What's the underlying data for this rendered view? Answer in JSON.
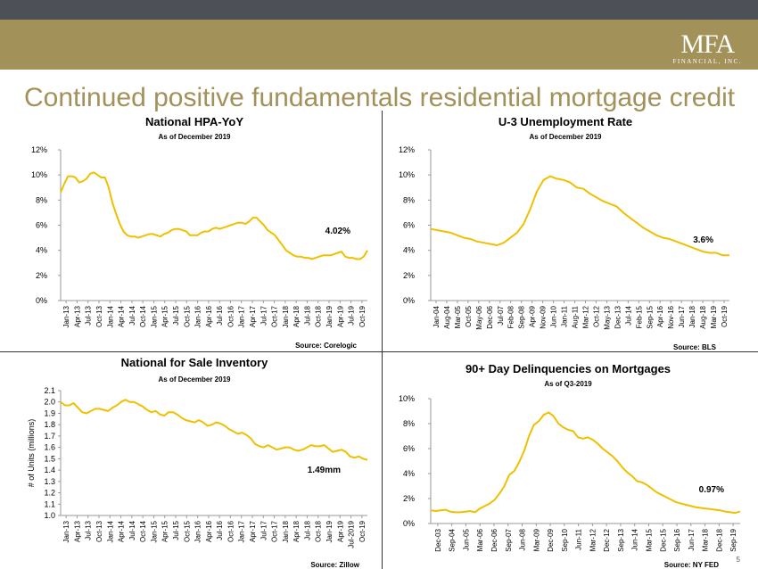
{
  "header": {
    "logo_text": "MFA",
    "logo_subtext": "FINANCIAL, INC.",
    "title": "Continued positive fundamentals residential mortgage credit"
  },
  "colors": {
    "gold": "#a3915a",
    "charcoal": "#4d5157",
    "line": "#f0c000"
  },
  "page_number": "5",
  "chart_data": [
    {
      "type": "line",
      "title": "National HPA-YoY",
      "subtitle": "As of  December 2019",
      "source": "Source: Corelogic",
      "annotation": "4.02%",
      "ylim": [
        0,
        12
      ],
      "yticks": [
        0,
        2,
        4,
        6,
        8,
        10,
        12
      ],
      "ytick_labels": [
        "0%",
        "2%",
        "4%",
        "6%",
        "8%",
        "10%",
        "12%"
      ],
      "xtick_labels": [
        "Jan-13",
        "Apr-13",
        "Jul-13",
        "Oct-13",
        "Jan-14",
        "Apr-14",
        "Jul-14",
        "Oct-14",
        "Jan-15",
        "Apr-15",
        "Jul-15",
        "Oct-15",
        "Jan-16",
        "Apr-16",
        "Jul-16",
        "Oct-16",
        "Jan-17",
        "Apr-17",
        "Jul-17",
        "Oct-17",
        "Jan-18",
        "Apr-18",
        "Jul-18",
        "Oct-18",
        "Jan-19",
        "Apr-19",
        "Jul-19",
        "Oct-19"
      ],
      "series": [
        {
          "values": [
            8.6,
            9.3,
            9.9,
            9.9,
            9.8,
            9.4,
            9.5,
            9.7,
            10.1,
            10.2,
            10.0,
            9.8,
            9.8,
            9.0,
            7.8,
            6.9,
            6.1,
            5.5,
            5.2,
            5.1,
            5.1,
            5.0,
            5.1,
            5.2,
            5.3,
            5.3,
            5.2,
            5.1,
            5.3,
            5.4,
            5.6,
            5.7,
            5.7,
            5.6,
            5.5,
            5.2,
            5.2,
            5.2,
            5.4,
            5.5,
            5.5,
            5.7,
            5.8,
            5.7,
            5.8,
            5.9,
            6.0,
            6.1,
            6.2,
            6.2,
            6.1,
            6.3,
            6.6,
            6.6,
            6.3,
            6.0,
            5.6,
            5.4,
            5.2,
            4.8,
            4.4,
            4.0,
            3.8,
            3.6,
            3.5,
            3.5,
            3.4,
            3.4,
            3.3,
            3.4,
            3.5,
            3.6,
            3.6,
            3.6,
            3.7,
            3.8,
            3.9,
            3.5,
            3.4,
            3.4,
            3.3,
            3.3,
            3.5,
            4.0
          ]
        }
      ]
    },
    {
      "type": "line",
      "title": "U-3 Unemployment Rate",
      "subtitle": "As of December 2019",
      "source": "Source: BLS",
      "annotation": "3.6%",
      "ylim": [
        0,
        12
      ],
      "yticks": [
        0,
        2,
        4,
        6,
        8,
        10,
        12
      ],
      "ytick_labels": [
        "0%",
        "2%",
        "4%",
        "6%",
        "8%",
        "10%",
        "12%"
      ],
      "xtick_labels": [
        "Jan-04",
        "Aug-04",
        "Mar-05",
        "Oct-05",
        "May-06",
        "Dec-06",
        "Jul-07",
        "Feb-08",
        "Sep-08",
        "Apr-09",
        "Nov-09",
        "Jun-10",
        "Jan-11",
        "Aug-11",
        "Mar-12",
        "Oct-12",
        "May-13",
        "Dec-13",
        "Jul-14",
        "Feb-15",
        "Sep-15",
        "Apr-16",
        "Nov-16",
        "Jun-17",
        "Jan-18",
        "Aug-18",
        "Mar-19",
        "Oct-19"
      ],
      "series": [
        {
          "values": [
            5.7,
            5.6,
            5.5,
            5.4,
            5.2,
            5.0,
            4.9,
            4.7,
            4.6,
            4.5,
            4.4,
            4.6,
            5.0,
            5.4,
            6.1,
            7.3,
            8.7,
            9.6,
            9.9,
            9.7,
            9.6,
            9.4,
            9.0,
            8.9,
            8.5,
            8.2,
            7.9,
            7.7,
            7.5,
            7.0,
            6.6,
            6.2,
            5.8,
            5.5,
            5.2,
            5.0,
            4.9,
            4.7,
            4.5,
            4.3,
            4.1,
            3.9,
            3.8,
            3.8,
            3.6,
            3.6
          ]
        }
      ]
    },
    {
      "type": "line",
      "title": "National for Sale Inventory",
      "subtitle": "As of December 2019",
      "source": "Source: Zillow",
      "annotation": "1.49mm",
      "ylabel": "# of Units (millions)",
      "ylim": [
        1.0,
        2.1
      ],
      "yticks": [
        1.0,
        1.1,
        1.2,
        1.3,
        1.4,
        1.5,
        1.6,
        1.7,
        1.8,
        1.9,
        2.0,
        2.1
      ],
      "ytick_labels": [
        "1.0",
        "1.1",
        "1.2",
        "1.3",
        "1.4",
        "1.5",
        "1.6",
        "1.7",
        "1.8",
        "1.9",
        "2.0",
        "2.1"
      ],
      "xtick_labels": [
        "Jan-13",
        "Apr-13",
        "Jul-13",
        "Oct-13",
        "Jan-14",
        "Apr-14",
        "Jul-14",
        "Oct-14",
        "Jan-15",
        "Apr-15",
        "Jul-15",
        "Oct-15",
        "Jan-16",
        "Apr-16",
        "Jul-16",
        "Oct-16",
        "Jan-17",
        "Apr-17",
        "Jul-17",
        "Oct-17",
        "Jan-18",
        "Apr-18",
        "Jul-18",
        "Oct-18",
        "Jan-19",
        "Apr-19",
        "Jul-2019",
        "Oct-19"
      ],
      "series": [
        {
          "values": [
            2.0,
            1.97,
            1.97,
            1.99,
            1.95,
            1.91,
            1.9,
            1.92,
            1.94,
            1.94,
            1.93,
            1.92,
            1.95,
            1.97,
            2.0,
            2.02,
            2.0,
            2.0,
            1.98,
            1.96,
            1.93,
            1.91,
            1.92,
            1.89,
            1.88,
            1.91,
            1.91,
            1.89,
            1.86,
            1.84,
            1.83,
            1.82,
            1.84,
            1.82,
            1.79,
            1.8,
            1.82,
            1.81,
            1.79,
            1.76,
            1.74,
            1.72,
            1.73,
            1.71,
            1.68,
            1.63,
            1.61,
            1.6,
            1.62,
            1.6,
            1.58,
            1.59,
            1.6,
            1.6,
            1.58,
            1.57,
            1.58,
            1.6,
            1.62,
            1.61,
            1.61,
            1.62,
            1.59,
            1.56,
            1.57,
            1.58,
            1.56,
            1.52,
            1.51,
            1.52,
            1.5,
            1.49
          ]
        }
      ]
    },
    {
      "type": "line",
      "title": "90+ Day Delinquencies on Mortgages",
      "subtitle": "As of Q3-2019",
      "source": "Source: NY FED",
      "annotation": "0.97%",
      "ylim": [
        0,
        10
      ],
      "yticks": [
        0,
        2,
        4,
        6,
        8,
        10
      ],
      "ytick_labels": [
        "0%",
        "2%",
        "4%",
        "6%",
        "8%",
        "10%"
      ],
      "xtick_labels": [
        "Dec-03",
        "Sep-04",
        "Jun-05",
        "Mar-06",
        "Dec-06",
        "Sep-07",
        "Jun-08",
        "Mar-09",
        "Dec-09",
        "Sep-10",
        "Jun-11",
        "Mar-12",
        "Dec-12",
        "Sep-13",
        "Jun-14",
        "Mar-15",
        "Dec-15",
        "Sep-16",
        "Jun-17",
        "Mar-18",
        "Dec-18",
        "Sep-19"
      ],
      "series": [
        {
          "values": [
            1.05,
            1.0,
            1.05,
            1.1,
            0.95,
            0.9,
            0.9,
            0.95,
            1.0,
            0.9,
            1.2,
            1.4,
            1.6,
            1.9,
            2.4,
            3.0,
            3.9,
            4.2,
            4.9,
            5.8,
            7.0,
            7.9,
            8.2,
            8.7,
            8.9,
            8.6,
            8.0,
            7.7,
            7.5,
            7.4,
            6.9,
            6.8,
            6.9,
            6.7,
            6.4,
            6.0,
            5.7,
            5.4,
            5.0,
            4.5,
            4.1,
            3.8,
            3.4,
            3.3,
            3.1,
            2.8,
            2.5,
            2.3,
            2.1,
            1.9,
            1.7,
            1.6,
            1.5,
            1.4,
            1.3,
            1.25,
            1.2,
            1.15,
            1.1,
            1.05,
            0.95,
            0.9,
            0.85,
            0.97
          ]
        }
      ]
    }
  ]
}
